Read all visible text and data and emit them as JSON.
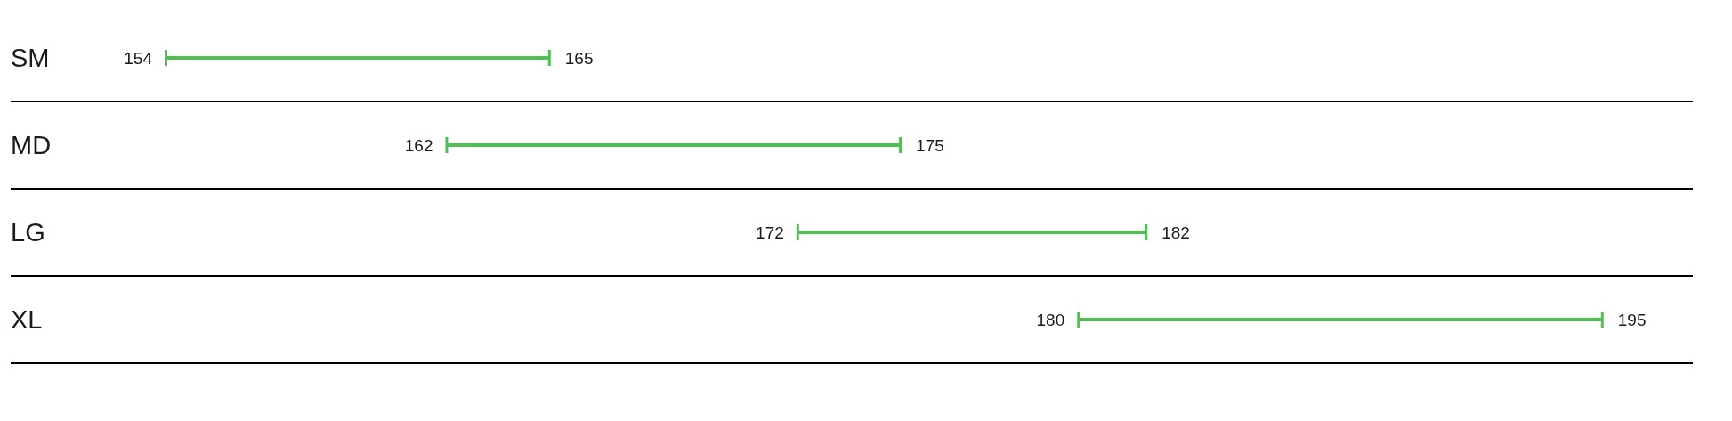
{
  "chart_data": {
    "type": "other",
    "categories": [
      "SM",
      "MD",
      "LG",
      "XL"
    ],
    "series": [
      {
        "values": [
          154,
          162,
          172,
          180
        ]
      },
      {
        "values": [
          165,
          175,
          182,
          195
        ]
      }
    ],
    "color": "#4fc152",
    "data_labels": true
  }
}
